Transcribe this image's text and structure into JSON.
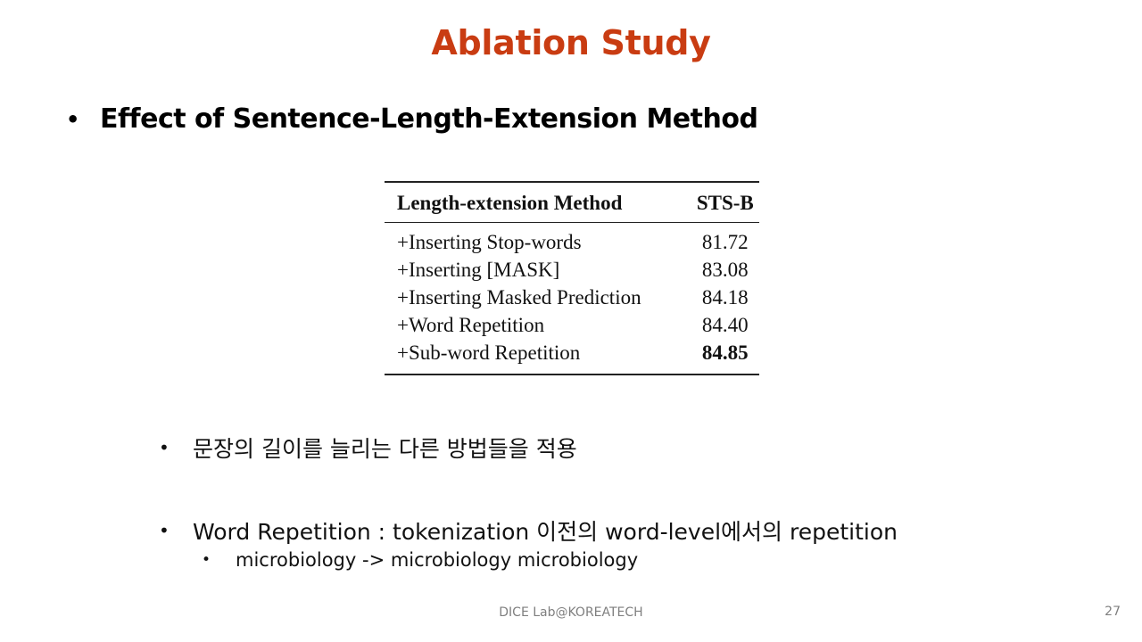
{
  "slide": {
    "title": "Ablation Study",
    "main_bullet": {
      "marker": "•",
      "text": "Effect of Sentence-Length-Extension Method"
    },
    "table": {
      "headers": [
        "Length-extension Method",
        "STS-B"
      ],
      "rows": [
        {
          "method": "+Inserting Stop-words",
          "score": "81.72"
        },
        {
          "method": "+Inserting [MASK]",
          "score": "83.08"
        },
        {
          "method": "+Inserting Masked Prediction",
          "score": "84.18"
        },
        {
          "method": "+Word Repetition",
          "score": "84.40"
        },
        {
          "method": "+Sub-word Repetition",
          "score": "84.85"
        }
      ]
    },
    "bullets": [
      {
        "marker": "•",
        "text": "문장의 길이를 늘리는 다른 방법들을 적용"
      },
      {
        "marker": "•",
        "text": "Word Repetition : tokenization 이전의 word-level에서의 repetition"
      }
    ],
    "sub_bullet": {
      "marker": "•",
      "text": "microbiology -> microbiology microbiology"
    },
    "footer": "DICE  Lab@KOREATECH",
    "page_number": "27",
    "colors": {
      "title": "#c93c12",
      "footer": "#7f7f7f"
    }
  }
}
